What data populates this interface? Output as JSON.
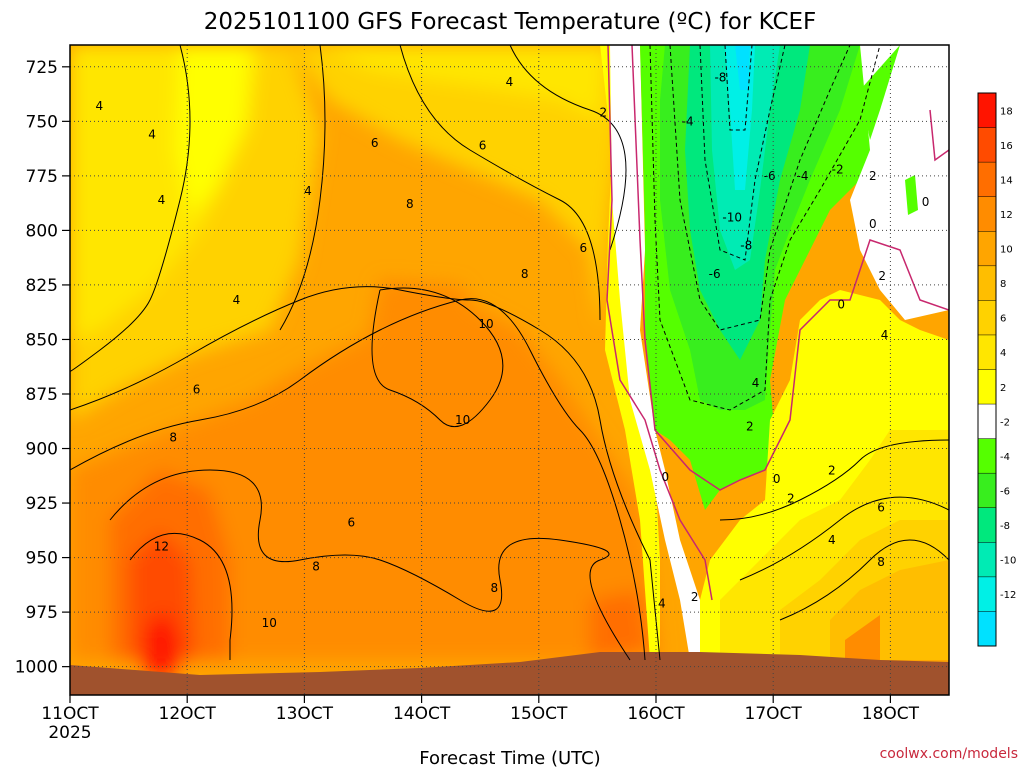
{
  "chart_data": {
    "type": "heatmap",
    "title": "2025101100 GFS Forecast Temperature (ºC) for KCEF",
    "xlabel": "Forecast Time (UTC)",
    "x_ticks": [
      "11OCT",
      "12OCT",
      "13OCT",
      "14OCT",
      "15OCT",
      "16OCT",
      "17OCT",
      "18OCT"
    ],
    "x_year": "2025",
    "xlim_days": [
      11,
      18.5
    ],
    "y_ticks": [
      725,
      750,
      775,
      800,
      825,
      850,
      875,
      900,
      925,
      950,
      975,
      1000
    ],
    "ylim_hpa": [
      1013,
      715
    ],
    "colorbar_ticks": [
      18,
      16,
      14,
      12,
      10,
      8,
      6,
      4,
      2,
      -2,
      -4,
      -6,
      -8,
      -10,
      -12
    ],
    "colorbar_colors": [
      "#ff1400",
      "#ff4b00",
      "#ff6e00",
      "#ff8c00",
      "#ffa500",
      "#ffbe00",
      "#ffd200",
      "#ffe600",
      "#ffff00",
      "#ffffff",
      "#55ff00",
      "#38ee1e",
      "#00e87d",
      "#00ebb4",
      "#00f0e6",
      "#00e1ff"
    ],
    "contour_labels": [
      {
        "text": "4",
        "day": 11.25,
        "p": 743
      },
      {
        "text": "4",
        "day": 11.7,
        "p": 756
      },
      {
        "text": "4",
        "day": 11.78,
        "p": 786
      },
      {
        "text": "4",
        "day": 12.42,
        "p": 832
      },
      {
        "text": "4",
        "day": 13.03,
        "p": 782
      },
      {
        "text": "4",
        "day": 14.75,
        "p": 732
      },
      {
        "text": "2",
        "day": 15.55,
        "p": 746
      },
      {
        "text": "6",
        "day": 13.6,
        "p": 760
      },
      {
        "text": "6",
        "day": 14.52,
        "p": 761
      },
      {
        "text": "6",
        "day": 15.38,
        "p": 808
      },
      {
        "text": "6",
        "day": 12.08,
        "p": 873
      },
      {
        "text": "6",
        "day": 13.4,
        "p": 934
      },
      {
        "text": "8",
        "day": 13.9,
        "p": 788
      },
      {
        "text": "8",
        "day": 14.88,
        "p": 820
      },
      {
        "text": "8",
        "day": 11.88,
        "p": 895
      },
      {
        "text": "8",
        "day": 13.1,
        "p": 954
      },
      {
        "text": "8",
        "day": 14.62,
        "p": 964
      },
      {
        "text": "10",
        "day": 14.55,
        "p": 843
      },
      {
        "text": "10",
        "day": 14.35,
        "p": 887
      },
      {
        "text": "10",
        "day": 12.7,
        "p": 980
      },
      {
        "text": "12",
        "day": 11.78,
        "p": 945
      },
      {
        "text": "4",
        "day": 16.05,
        "p": 971
      },
      {
        "text": "2",
        "day": 16.33,
        "p": 968
      },
      {
        "text": "0",
        "day": 16.08,
        "p": 913
      },
      {
        "text": "0",
        "day": 17.03,
        "p": 914
      },
      {
        "text": "2",
        "day": 16.8,
        "p": 890
      },
      {
        "text": "2",
        "day": 17.15,
        "p": 923
      },
      {
        "text": "2",
        "day": 17.5,
        "p": 910
      },
      {
        "text": "4",
        "day": 17.5,
        "p": 942
      },
      {
        "text": "6",
        "day": 17.92,
        "p": 927
      },
      {
        "text": "8",
        "day": 17.92,
        "p": 952
      },
      {
        "text": "4",
        "day": 16.85,
        "p": 870
      },
      {
        "text": "-8",
        "day": 16.55,
        "p": 730
      },
      {
        "text": "-4",
        "day": 16.27,
        "p": 750
      },
      {
        "text": "-10",
        "day": 16.65,
        "p": 794
      },
      {
        "text": "-6",
        "day": 16.97,
        "p": 775
      },
      {
        "text": "-4",
        "day": 17.25,
        "p": 775
      },
      {
        "text": "-2",
        "day": 17.55,
        "p": 772
      },
      {
        "text": "-8",
        "day": 16.77,
        "p": 807
      },
      {
        "text": "-6",
        "day": 16.5,
        "p": 820
      },
      {
        "text": "2",
        "day": 17.85,
        "p": 775
      },
      {
        "text": "0",
        "day": 17.85,
        "p": 797
      },
      {
        "text": "0",
        "day": 18.3,
        "p": 787
      },
      {
        "text": "2",
        "day": 17.93,
        "p": 821
      },
      {
        "text": "0",
        "day": 17.58,
        "p": 834
      },
      {
        "text": "4",
        "day": 17.95,
        "p": 848
      }
    ]
  },
  "credit": "coolwx.com/models"
}
